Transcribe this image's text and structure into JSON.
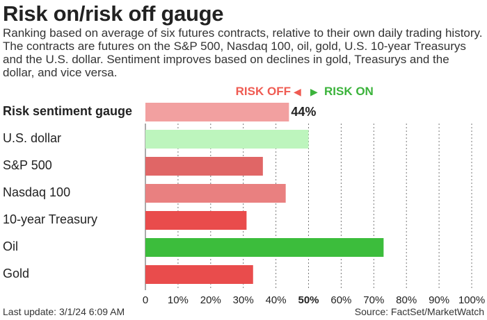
{
  "title": "Risk on/risk off gauge",
  "subtitle": "Ranking based on average of six futures contracts, relative to their own daily trading history. The contracts are futures on the S&P 500, Nasdaq 100, oil, gold, U.S. 10-year Treasurys and the U.S. dollar. Sentiment improves based on declines in gold, Treasurys and the dollar, and vice versa.",
  "direction": {
    "risk_off": "RISK OFF",
    "risk_on": "RISK ON",
    "colors": {
      "risk_off": "#ef5b52",
      "risk_on": "#3bb33b"
    }
  },
  "footer": {
    "last_update": "Last update: 3/1/24 6:09 AM",
    "source": "Source: FactSet/MarketWatch"
  },
  "chart_data": {
    "type": "bar",
    "orientation": "horizontal",
    "categories": [
      "Risk sentiment gauge",
      "U.S. dollar",
      "S&P 500",
      "Nasdaq 100",
      "10-year Treasury",
      "Oil",
      "Gold"
    ],
    "values": [
      44,
      50,
      36,
      43,
      31,
      73,
      33
    ],
    "colors": [
      "#f2a0a0",
      "#bdf5bd",
      "#e06666",
      "#e98080",
      "#e94c4c",
      "#3cbd3c",
      "#e94c4c"
    ],
    "gauge_label": "44%",
    "xlim": [
      0,
      100
    ],
    "x_ticks": [
      "0",
      "10%",
      "20%",
      "30%",
      "40%",
      "50%",
      "60%",
      "70%",
      "80%",
      "90%",
      "100%"
    ],
    "midpoint_tick": "50%",
    "grid": "vertical dotted"
  }
}
